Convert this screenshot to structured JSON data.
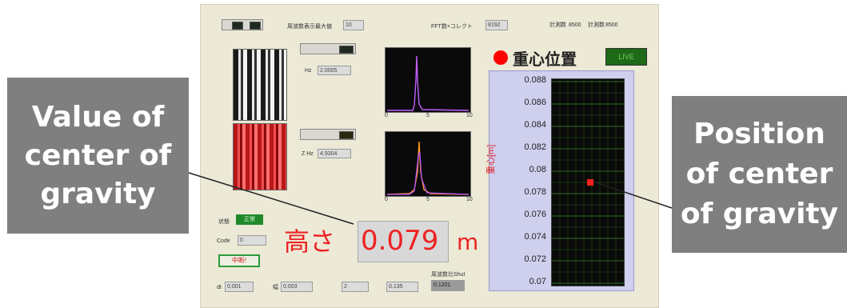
{
  "top_bar": {
    "field_label": "周波数表示最大値",
    "field_value": "10",
    "fft_label": "FFT数×コレクト",
    "fft_value": "8192",
    "measure_label_1": "計測数",
    "measure_value_1": "8500",
    "measure_label_2": "計測数",
    "measure_value_2": "8500"
  },
  "plots": {
    "plot1_xticks": [
      "0",
      "5",
      "10"
    ],
    "plot2_xticks": [
      "0",
      "5",
      "10"
    ],
    "field1_label": "Hz",
    "field1_value": "2.0005",
    "field2_label": "Z Hz",
    "field2_value": "4.9304"
  },
  "status": {
    "state_label": "状態",
    "state_value": "正常",
    "code_label": "Code",
    "code_value": "0",
    "stop_button": "中断!"
  },
  "height_display": {
    "label": "高さ",
    "value": "0.079",
    "unit": "m"
  },
  "bottom_controls": {
    "dt_label": "dt",
    "dt_value": "0.001",
    "w_label": "幅",
    "w_value": "0.003",
    "p_value": "2",
    "y_value": "0.135",
    "period_label": "周波数比Shut",
    "period_value": "0.1201"
  },
  "cog_panel": {
    "title": "重心位置",
    "indicator_color": "#ff0000",
    "led_label": "LIVE",
    "axis_label": "重心[m]",
    "y_ticks": [
      "0.088",
      "0.086",
      "0.084",
      "0.082",
      "0.08",
      "0.078",
      "0.076",
      "0.074",
      "0.072",
      "0.07"
    ],
    "marker_y": 0.079
  },
  "callouts": {
    "left": [
      "Value of",
      "center of",
      "gravity"
    ],
    "right": [
      "Position",
      "of center",
      "of gravity"
    ]
  },
  "colors": {
    "height_text": "#ee2222",
    "callout_bg": "#7f7f7f",
    "plot_bg": "#0a0a0a",
    "grid": "#3a8a2a",
    "marker": "#ff2020"
  }
}
